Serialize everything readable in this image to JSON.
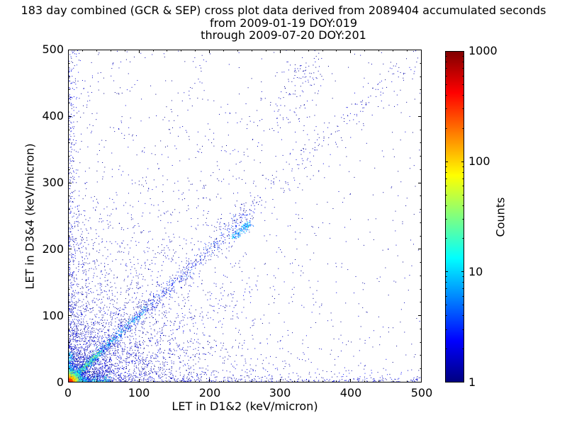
{
  "chart_data": {
    "type": "heatmap-scatter",
    "title": "183 day combined (GCR & SEP) cross plot data derived from 2089404 accumulated seconds",
    "subtitle_from": "from 2009-01-19 DOY:019",
    "subtitle_through": "through 2009-07-20 DOY:201",
    "duration_days": 183,
    "accumulated_seconds": 2089404,
    "date_start": "2009-01-19",
    "doy_start": 19,
    "date_end": "2009-07-20",
    "doy_end": 201,
    "xlabel": "LET in D1&2 (keV/micron)",
    "ylabel": "LET in D3&4 (keV/micron)",
    "xlim": [
      0,
      500
    ],
    "ylim": [
      0,
      500
    ],
    "xticks": [
      0,
      100,
      200,
      300,
      400,
      500
    ],
    "yticks": [
      0,
      100,
      200,
      300,
      400,
      500
    ],
    "minor_tick_step": 20,
    "grid": false,
    "colorbar": {
      "label": "Counts",
      "scale": "log",
      "min": 1,
      "max": 1000,
      "ticks": [
        1,
        10,
        100,
        1000
      ],
      "colormap": "jet"
    },
    "distribution": {
      "seed": 1337,
      "description": "2D LET-LET histogram: hot core at origin (counts to ~1000), bright 1:1 diagonal band fading with distance, faint rays at other slopes, dense bands hugging both axes, sparse count-1 background concentrated toward lower-left, small cyan clump near (245,230), sparse plume toward (330,490)",
      "clusters": [
        {
          "type": "uniform",
          "n": 600,
          "cmin": 1,
          "cmax": 1.6,
          "size": 1
        },
        {
          "type": "exp2d",
          "n": 2300,
          "sx": 115,
          "sy": 115,
          "cmin": 1,
          "cmax": 2,
          "size": 1
        },
        {
          "type": "exp2d",
          "n": 900,
          "sx": 42,
          "sy": 42,
          "cmin": 1,
          "cmax": 3,
          "size": 1
        },
        {
          "type": "band_v",
          "n": 400,
          "sx": 5,
          "cmin": 1,
          "cmax": 3,
          "size": 1
        },
        {
          "type": "band_h",
          "n": 400,
          "sy": 5,
          "cmin": 1,
          "cmax": 3,
          "size": 1
        },
        {
          "type": "ray",
          "n": 220,
          "slope": 1.45,
          "len": 480,
          "spread": 13,
          "tpow": 2,
          "cmin": 1,
          "cmax": 2,
          "size": 1
        },
        {
          "type": "ray",
          "n": 150,
          "slope": 2.6,
          "len": 300,
          "spread": 8,
          "tpow": 2,
          "cmin": 1,
          "cmax": 2,
          "size": 1
        },
        {
          "type": "ray",
          "n": 160,
          "slope": 0.55,
          "len": 260,
          "spread": 7,
          "tpow": 2,
          "cmin": 1,
          "cmax": 3,
          "size": 1
        },
        {
          "type": "ray",
          "n": 120,
          "slope": 0.32,
          "len": 200,
          "spread": 5,
          "tpow": 1.8,
          "cmin": 1,
          "cmax": 3,
          "size": 1
        },
        {
          "type": "ray",
          "n": 700,
          "slope": 1,
          "len": 500,
          "spread": 10,
          "tpow": 2.2,
          "cmin": 1,
          "cmax": 2,
          "size": 1
        },
        {
          "type": "segment",
          "n": 130,
          "x0": 300,
          "y0": 380,
          "x1": 345,
          "y1": 495,
          "spread": 16,
          "cmin": 1,
          "cmax": 2,
          "size": 1
        },
        {
          "type": "ray",
          "n": 900,
          "slope": 1,
          "len": 260,
          "spread": 5,
          "tpow": 1.8,
          "cmin": 1,
          "cmax": 5,
          "size": 1
        },
        {
          "type": "ray",
          "n": 500,
          "slope": 1,
          "len": 110,
          "spread": 3,
          "tpow": 1.6,
          "cmin": 3,
          "cmax": 20,
          "size": 1
        },
        {
          "type": "ray",
          "n": 260,
          "slope": 1,
          "len": 45,
          "spread": 2,
          "tpow": 1.4,
          "cmin": 8,
          "cmax": 60,
          "size": 1
        },
        {
          "type": "band_h",
          "n": 240,
          "sy": 3,
          "xmax": 60,
          "cmin": 3,
          "cmax": 25,
          "size": 1
        },
        {
          "type": "band_v",
          "n": 180,
          "sx": 3,
          "ymax": 45,
          "cmin": 3,
          "cmax": 18,
          "size": 1
        },
        {
          "type": "segment",
          "n": 170,
          "x0": 233,
          "y0": 218,
          "x1": 258,
          "y1": 240,
          "spread": 2.5,
          "cmin": 3,
          "cmax": 15,
          "size": 1
        },
        {
          "type": "origin",
          "n": 1300,
          "scale": 9,
          "peak": 900,
          "falloff": 5,
          "size": 1
        }
      ]
    }
  }
}
